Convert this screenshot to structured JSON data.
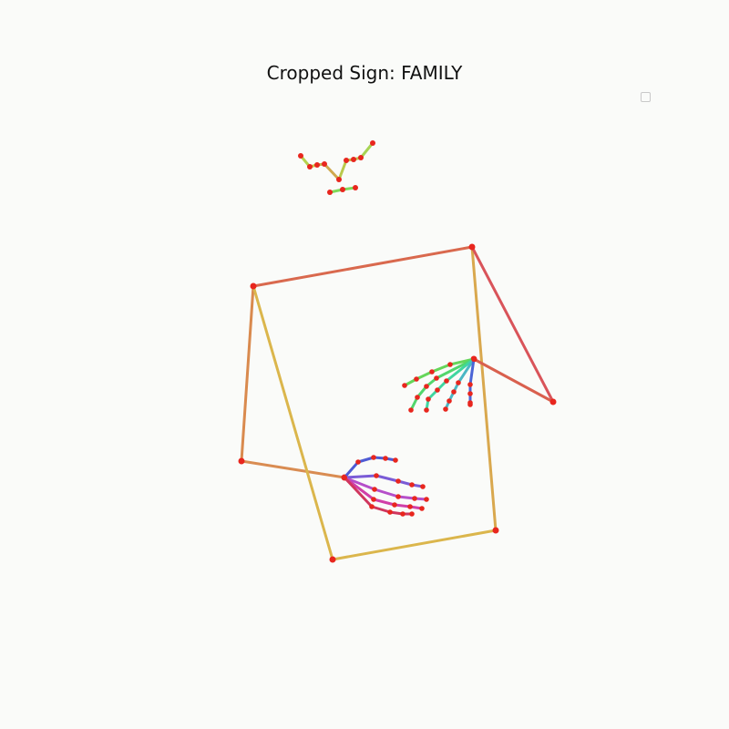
{
  "title": "Cropped Sign: FAMILY",
  "colors": {
    "background": "#fafbf9",
    "joint": "#e8261e"
  },
  "figure_parts": [
    "face-landmarks",
    "pose-skeleton",
    "right-hand-skeleton",
    "left-hand-skeleton"
  ],
  "legend": {
    "entries": []
  }
}
